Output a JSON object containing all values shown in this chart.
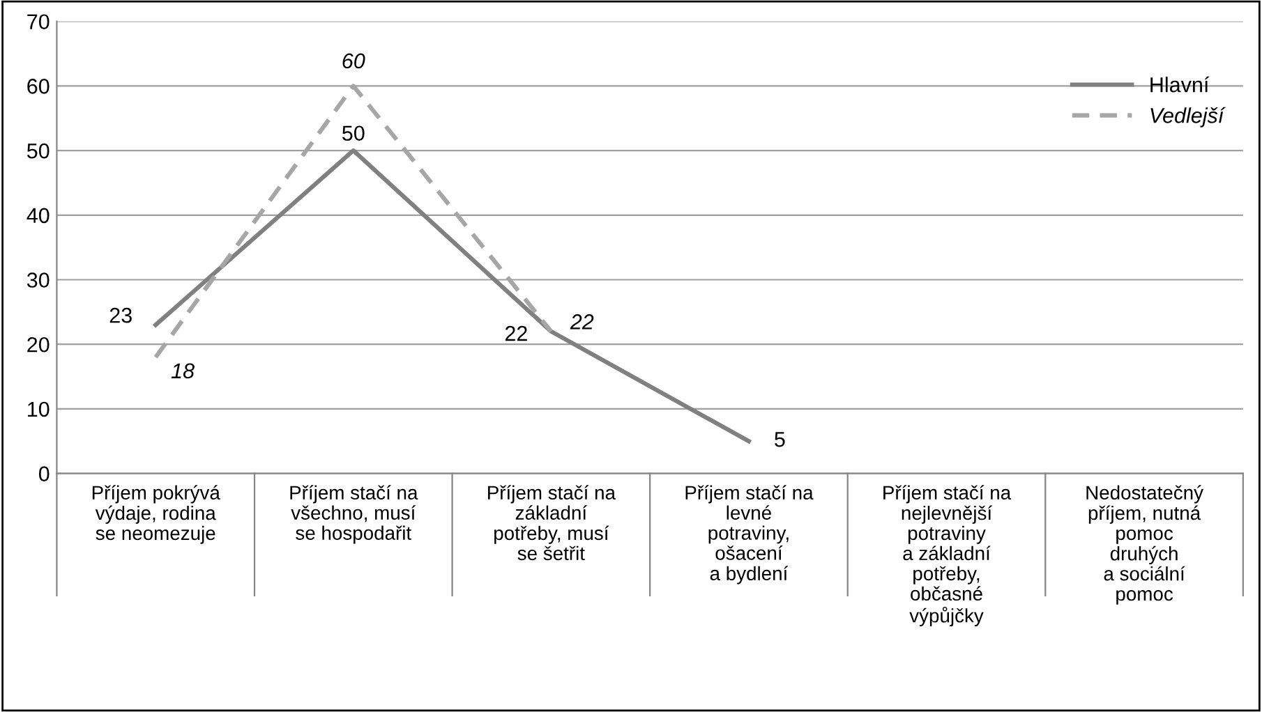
{
  "chart_data": {
    "type": "line",
    "categories": [
      "Příjem pokrývá\nvýdaje, rodina\nse neomezuje",
      "Příjem stačí na\nvšechno, musí\nse hospodařit",
      "Příjem stačí na\nzákladní\npotřeby, musí\nse šetřit",
      "Příjem stačí na\nlevné\npotraviny,\nošacení\na bydlení",
      "Příjem stačí na\nnejlevnější\npotraviny\na základní\npotřeby,\nobčasné\nvýpůjčky",
      "Nedostatečný\npříjem, nutná\npomoc\ndruhých\na sociální\npomoc"
    ],
    "series": [
      {
        "name": "Hlavní",
        "color": "#808080",
        "line_style": "solid",
        "values": [
          23,
          50,
          22,
          5,
          null,
          null
        ]
      },
      {
        "name": "Vedlejší",
        "color": "#a6a6a6",
        "line_style": "dashed",
        "values": [
          18,
          60,
          22,
          null,
          null,
          null
        ]
      }
    ],
    "ylim": [
      0,
      70
    ],
    "yticks": [
      0,
      10,
      20,
      30,
      40,
      50,
      60,
      70
    ],
    "grid": "y",
    "legend": "top right",
    "data_labels": true,
    "marker": "none"
  }
}
